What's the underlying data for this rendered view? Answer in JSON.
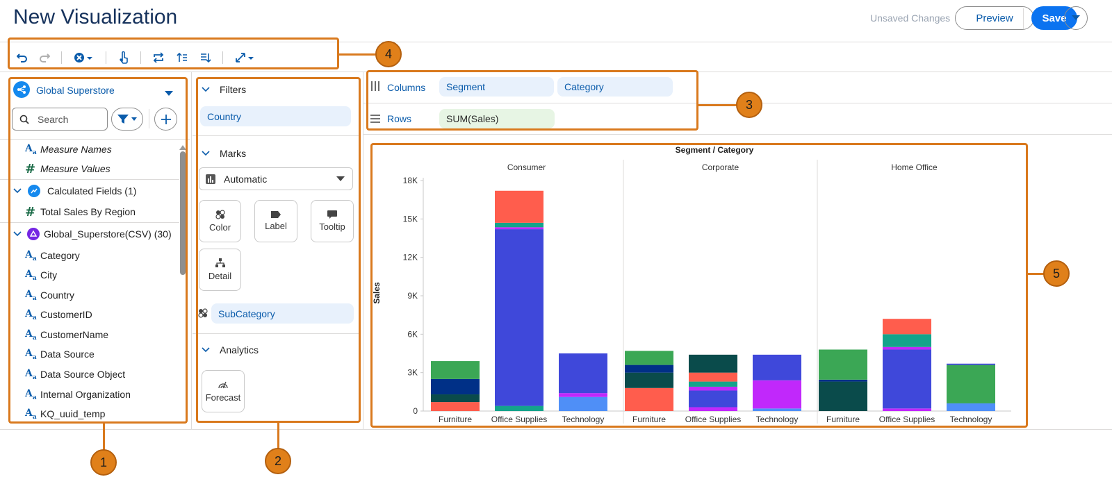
{
  "header": {
    "title": "New Visualization",
    "unsaved": "Unsaved Changes",
    "preview_label": "Preview",
    "save_label": "Save"
  },
  "toolbar": {
    "icons": [
      "undo-icon",
      "redo-icon",
      "clear-icon",
      "interact-icon",
      "swap-icon",
      "sort-ascending-icon",
      "sort-descending-icon",
      "fit-icon"
    ]
  },
  "data_panel": {
    "source_name": "Global Superstore",
    "search_placeholder": "Search",
    "fields_top": [
      {
        "type": "text",
        "label": "Measure Names"
      },
      {
        "type": "number",
        "label": "Measure Values"
      }
    ],
    "calc_group": "Calculated Fields (1)",
    "calc_fields": [
      {
        "type": "number",
        "label": "Total Sales By Region"
      }
    ],
    "csv_group": "Global_Superstore(CSV) (30)",
    "csv_fields": [
      {
        "type": "text",
        "label": "Category"
      },
      {
        "type": "text",
        "label": "City"
      },
      {
        "type": "text",
        "label": "Country"
      },
      {
        "type": "text",
        "label": "CustomerID"
      },
      {
        "type": "text",
        "label": "CustomerName"
      },
      {
        "type": "text",
        "label": "Data Source"
      },
      {
        "type": "text",
        "label": "Data Source Object"
      },
      {
        "type": "text",
        "label": "Internal Organization"
      },
      {
        "type": "text",
        "label": "KQ_uuid_temp"
      }
    ]
  },
  "filters_panel": {
    "filters_label": "Filters",
    "filter_pill": "Country",
    "marks_label": "Marks",
    "marks_type": "Automatic",
    "mark_buttons": [
      "Color",
      "Label",
      "Tooltip",
      "Detail"
    ],
    "color_field": "SubCategory",
    "analytics_label": "Analytics",
    "forecast_label": "Forecast"
  },
  "shelves": {
    "columns_label": "Columns",
    "columns": [
      "Segment",
      "Category"
    ],
    "rows_label": "Rows",
    "rows": [
      "SUM(Sales)"
    ]
  },
  "callouts": [
    "1",
    "2",
    "3",
    "4",
    "5"
  ],
  "chart_data": {
    "type": "bar",
    "stacked": true,
    "title": "Segment / Category",
    "ylabel": "Sales",
    "ylim": [
      0,
      18000
    ],
    "yticks": [
      "0",
      "3K",
      "6K",
      "9K",
      "12K",
      "15K",
      "18K"
    ],
    "ytick_values": [
      0,
      3000,
      6000,
      9000,
      12000,
      15000,
      18000
    ],
    "panels": [
      {
        "name": "Consumer",
        "bars": [
          {
            "category": "Furniture",
            "segments": [
              {
                "value": 700,
                "color": "#ff5d4d"
              },
              {
                "value": 600,
                "color": "#0a4b4b"
              },
              {
                "value": 1200,
                "color": "#003087"
              },
              {
                "value": 1400,
                "color": "#3ba755"
              }
            ]
          },
          {
            "category": "Office Supplies",
            "segments": [
              {
                "value": 400,
                "color": "#14a38b"
              },
              {
                "value": 13800,
                "color": "#3f48da"
              },
              {
                "value": 150,
                "color": "#c128fb"
              },
              {
                "value": 350,
                "color": "#14a38b"
              },
              {
                "value": 2500,
                "color": "#ff5d4d"
              }
            ]
          },
          {
            "category": "Technology",
            "segments": [
              {
                "value": 1100,
                "color": "#4f8ff7"
              },
              {
                "value": 300,
                "color": "#c128fb"
              },
              {
                "value": 3100,
                "color": "#3f48da"
              }
            ]
          }
        ]
      },
      {
        "name": "Corporate",
        "bars": [
          {
            "category": "Furniture",
            "segments": [
              {
                "value": 1800,
                "color": "#ff5d4d"
              },
              {
                "value": 1200,
                "color": "#0a4b4b"
              },
              {
                "value": 600,
                "color": "#003087"
              },
              {
                "value": 1100,
                "color": "#3ba755"
              }
            ]
          },
          {
            "category": "Office Supplies",
            "segments": [
              {
                "value": 300,
                "color": "#c128fb"
              },
              {
                "value": 1300,
                "color": "#3f48da"
              },
              {
                "value": 300,
                "color": "#c128fb"
              },
              {
                "value": 400,
                "color": "#14a38b"
              },
              {
                "value": 700,
                "color": "#ff5d4d"
              },
              {
                "value": 1400,
                "color": "#0a4b4b"
              }
            ]
          },
          {
            "category": "Technology",
            "segments": [
              {
                "value": 200,
                "color": "#4f8ff7"
              },
              {
                "value": 2200,
                "color": "#c128fb"
              },
              {
                "value": 2000,
                "color": "#3f48da"
              }
            ]
          }
        ]
      },
      {
        "name": "Home Office",
        "bars": [
          {
            "category": "Furniture",
            "segments": [
              {
                "value": 2300,
                "color": "#0a4b4b"
              },
              {
                "value": 150,
                "color": "#003087"
              },
              {
                "value": 2350,
                "color": "#3ba755"
              }
            ]
          },
          {
            "category": "Office Supplies",
            "segments": [
              {
                "value": 200,
                "color": "#c128fb"
              },
              {
                "value": 4600,
                "color": "#3f48da"
              },
              {
                "value": 200,
                "color": "#c128fb"
              },
              {
                "value": 1000,
                "color": "#14a38b"
              },
              {
                "value": 1200,
                "color": "#ff5d4d"
              }
            ]
          },
          {
            "category": "Technology",
            "segments": [
              {
                "value": 600,
                "color": "#4f8ff7"
              },
              {
                "value": 3000,
                "color": "#3ba755"
              },
              {
                "value": 100,
                "color": "#3f48da"
              }
            ]
          }
        ]
      }
    ]
  }
}
